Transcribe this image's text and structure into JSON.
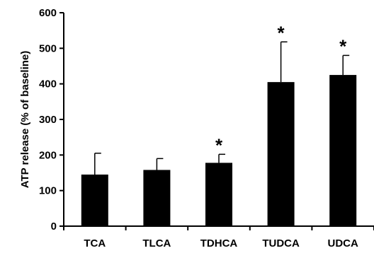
{
  "chart_data": {
    "type": "bar",
    "title": "",
    "xlabel": "",
    "ylabel": "ATP release (% of baseline)",
    "ylim": [
      0,
      600
    ],
    "yticks": [
      0,
      100,
      200,
      300,
      400,
      500,
      600
    ],
    "grid": false,
    "categories": [
      "TCA",
      "TLCA",
      "TDHCA",
      "TUDCA",
      "UDCA"
    ],
    "values": [
      145,
      158,
      178,
      405,
      425
    ],
    "error_plus": [
      60,
      32,
      24,
      113,
      55
    ],
    "significance": [
      "",
      "",
      "*",
      "*",
      "*"
    ],
    "bar_color": "#000000"
  }
}
